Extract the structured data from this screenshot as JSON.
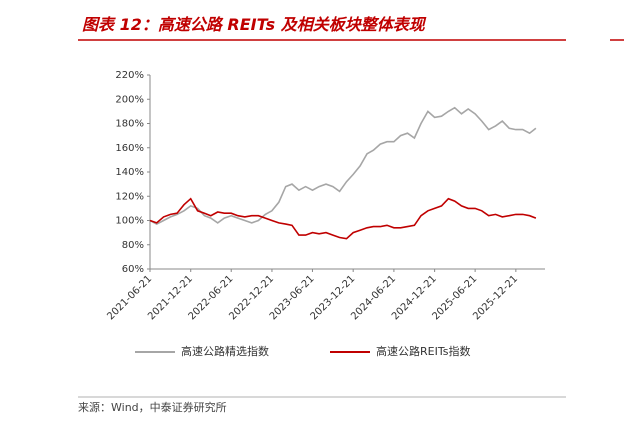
{
  "chart_data": {
    "type": "line",
    "title": "图表 12：高速公路 REITs 及相关板块整体表现",
    "source": "来源：Wind，中泰证券研究所",
    "x": [
      "2021-06-21",
      "2021-07-21",
      "2021-08-21",
      "2021-09-21",
      "2021-10-21",
      "2021-11-21",
      "2021-12-21",
      "2022-01-21",
      "2022-02-21",
      "2022-03-21",
      "2022-04-21",
      "2022-05-21",
      "2022-06-21",
      "2022-07-21",
      "2022-08-21",
      "2022-09-21",
      "2022-10-21",
      "2022-11-21",
      "2022-12-21",
      "2023-01-21",
      "2023-02-21",
      "2023-03-21",
      "2023-04-21",
      "2023-05-21",
      "2023-06-21",
      "2023-07-21",
      "2023-08-21",
      "2023-09-21",
      "2023-10-21",
      "2023-11-21",
      "2023-12-21",
      "2024-01-21",
      "2024-02-21",
      "2024-03-21",
      "2024-04-21",
      "2024-05-21",
      "2024-06-21",
      "2024-07-21",
      "2024-08-21",
      "2024-09-21",
      "2024-10-21",
      "2024-11-21",
      "2024-12-21",
      "2025-01-21",
      "2025-02-21",
      "2025-03-21",
      "2025-04-21",
      "2025-05-21",
      "2025-06-21",
      "2025-07-21",
      "2025-08-21",
      "2025-09-21",
      "2025-10-21",
      "2025-11-21",
      "2025-12-21",
      "2026-01-21",
      "2026-02-21",
      "2026-03-21"
    ],
    "series": [
      {
        "name": "高速公路精选指数",
        "color": "#a6a6a6",
        "values": [
          100,
          97,
          100,
          103,
          105,
          108,
          112,
          110,
          104,
          102,
          98,
          102,
          104,
          102,
          100,
          98,
          100,
          105,
          108,
          115,
          128,
          130,
          125,
          128,
          125,
          128,
          130,
          128,
          124,
          132,
          138,
          145,
          155,
          158,
          163,
          165,
          165,
          170,
          172,
          168,
          180,
          190,
          185,
          186,
          190,
          193,
          188,
          192,
          188,
          182,
          175,
          178,
          182,
          176,
          175,
          175,
          172,
          176
        ]
      },
      {
        "name": "高速公路REITs指数",
        "color": "#c00000",
        "values": [
          100,
          98,
          103,
          105,
          106,
          113,
          118,
          108,
          106,
          104,
          107,
          106,
          106,
          104,
          103,
          104,
          104,
          102,
          100,
          98,
          97,
          96,
          88,
          88,
          90,
          89,
          90,
          88,
          86,
          85,
          90,
          92,
          94,
          95,
          95,
          96,
          94,
          94,
          95,
          96,
          104,
          108,
          110,
          112,
          118,
          116,
          112,
          110,
          110,
          108,
          104,
          105,
          103,
          104,
          105,
          105,
          104,
          102
        ]
      }
    ],
    "xlim": [
      "2021-06-21",
      "2026-05-01"
    ],
    "xticks": [
      "2021-06-21",
      "2021-12-21",
      "2022-06-21",
      "2022-12-21",
      "2023-06-21",
      "2023-12-21",
      "2024-06-21",
      "2024-12-21",
      "2025-06-21",
      "2025-12-21"
    ],
    "ylim": [
      60,
      220
    ],
    "yticks": [
      {
        "value": 60,
        "label": "60%"
      },
      {
        "value": 80,
        "label": "80%"
      },
      {
        "value": 100,
        "label": "100%"
      },
      {
        "value": 120,
        "label": "120%"
      },
      {
        "value": 140,
        "label": "140%"
      },
      {
        "value": 160,
        "label": "160%"
      },
      {
        "value": 180,
        "label": "180%"
      },
      {
        "value": 200,
        "label": "200%"
      },
      {
        "value": 220,
        "label": "220%"
      }
    ],
    "grid": false
  }
}
